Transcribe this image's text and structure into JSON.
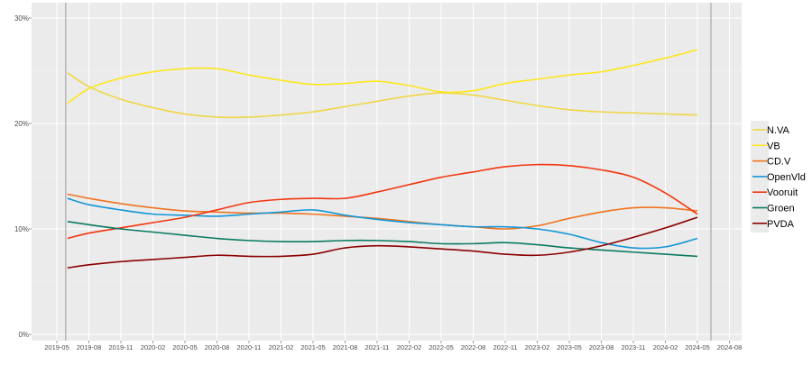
{
  "chart_data": {
    "type": "line",
    "title": "",
    "xlabel": "",
    "ylabel": "",
    "ylim": [
      0,
      30
    ],
    "y_ticks": [
      "0%",
      "10%",
      "20%",
      "30%"
    ],
    "y_tick_values": [
      0,
      10,
      20,
      30
    ],
    "x_ticks": [
      "2019-05",
      "2019-08",
      "2019-11",
      "2020-02",
      "2020-05",
      "2020-08",
      "2020-11",
      "2021-02",
      "2021-05",
      "2021-08",
      "2021-11",
      "2022-02",
      "2022-05",
      "2022-08",
      "2022-11",
      "2023-02",
      "2023-05",
      "2023-08",
      "2023-11",
      "2024-02",
      "2024-05",
      "2024-08"
    ],
    "grid": true,
    "legend_position": "right",
    "background": "#ebebeb",
    "election_markers": [
      "2019-05-26",
      "2024-06-09"
    ],
    "x": [
      "2019-06",
      "2019-08",
      "2019-11",
      "2020-02",
      "2020-05",
      "2020-08",
      "2020-11",
      "2021-02",
      "2021-05",
      "2021-08",
      "2021-11",
      "2022-02",
      "2022-05",
      "2022-08",
      "2022-11",
      "2023-02",
      "2023-05",
      "2023-08",
      "2023-11",
      "2024-02",
      "2024-05"
    ],
    "series": [
      {
        "name": "N.VA",
        "color": "#efd645",
        "values": [
          24.8,
          23.5,
          22.3,
          21.5,
          20.9,
          20.6,
          20.6,
          20.8,
          21.1,
          21.6,
          22.1,
          22.6,
          22.9,
          22.7,
          22.2,
          21.7,
          21.3,
          21.1,
          21.0,
          20.9,
          20.8
        ]
      },
      {
        "name": "VB",
        "color": "#fce71c",
        "values": [
          21.9,
          23.3,
          24.3,
          24.9,
          25.2,
          25.2,
          24.6,
          24.1,
          23.7,
          23.8,
          24.0,
          23.6,
          23.0,
          23.1,
          23.8,
          24.2,
          24.6,
          24.9,
          25.5,
          26.2,
          27.0
        ]
      },
      {
        "name": "CD.V",
        "color": "#f0731e",
        "values": [
          13.3,
          12.9,
          12.4,
          12.0,
          11.7,
          11.6,
          11.5,
          11.5,
          11.4,
          11.2,
          11.0,
          10.7,
          10.4,
          10.2,
          10.0,
          10.3,
          11.0,
          11.6,
          12.0,
          12.0,
          11.7
        ]
      },
      {
        "name": "OpenVld",
        "color": "#1496d6",
        "values": [
          12.9,
          12.3,
          11.8,
          11.4,
          11.3,
          11.2,
          11.4,
          11.6,
          11.8,
          11.3,
          10.9,
          10.6,
          10.4,
          10.2,
          10.2,
          10.0,
          9.5,
          8.7,
          8.2,
          8.3,
          9.1
        ]
      },
      {
        "name": "Vooruit",
        "color": "#f2360f",
        "values": [
          9.1,
          9.6,
          10.1,
          10.6,
          11.1,
          11.8,
          12.5,
          12.8,
          12.9,
          12.9,
          13.5,
          14.2,
          14.9,
          15.4,
          15.9,
          16.1,
          16.0,
          15.6,
          14.9,
          13.4,
          11.4
        ]
      },
      {
        "name": "Groen",
        "color": "#0a7a60",
        "values": [
          10.7,
          10.4,
          10.0,
          9.7,
          9.4,
          9.1,
          8.9,
          8.8,
          8.8,
          8.9,
          8.9,
          8.8,
          8.6,
          8.6,
          8.7,
          8.5,
          8.2,
          8.0,
          7.8,
          7.6,
          7.4
        ]
      },
      {
        "name": "PVDA",
        "color": "#8b0000",
        "values": [
          6.3,
          6.6,
          6.9,
          7.1,
          7.3,
          7.5,
          7.4,
          7.4,
          7.6,
          8.2,
          8.4,
          8.3,
          8.1,
          7.9,
          7.6,
          7.5,
          7.8,
          8.4,
          9.2,
          10.1,
          11.1
        ]
      }
    ]
  }
}
